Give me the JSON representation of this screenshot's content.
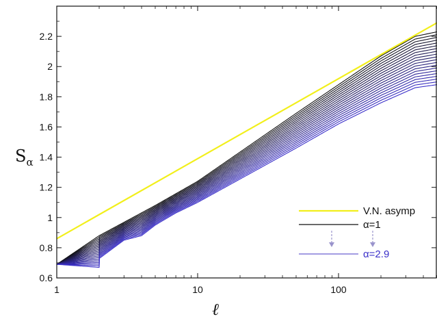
{
  "chart_data": {
    "type": "line",
    "xscale": "log",
    "xlim": [
      1,
      500
    ],
    "ylim": [
      0.6,
      2.4
    ],
    "xlabel": "ℓ",
    "ylabel_main": "S",
    "ylabel_sub": "α",
    "xticks": [
      {
        "value": 1,
        "label": "1"
      },
      {
        "value": 10,
        "label": "10"
      },
      {
        "value": 100,
        "label": "100"
      }
    ],
    "yticks": [
      {
        "value": 0.6,
        "label": "0.6"
      },
      {
        "value": 0.8,
        "label": "0.8"
      },
      {
        "value": 1.0,
        "label": "1"
      },
      {
        "value": 1.2,
        "label": "1.2"
      },
      {
        "value": 1.4,
        "label": "1.4"
      },
      {
        "value": 1.6,
        "label": "1.6"
      },
      {
        "value": 1.8,
        "label": "1.8"
      },
      {
        "value": 2.0,
        "label": "2"
      },
      {
        "value": 2.2,
        "label": "2.2"
      }
    ],
    "asymptote": {
      "name": "V.N. asymp",
      "color": "#f2ef1b",
      "x": [
        1,
        500
      ],
      "y": [
        0.86,
        2.29
      ]
    },
    "alpha_family": {
      "alpha_values": [
        1.0,
        1.1,
        1.2,
        1.3,
        1.4,
        1.5,
        1.6,
        1.7,
        1.8,
        1.9,
        2.0,
        2.1,
        2.2,
        2.3,
        2.4,
        2.5,
        2.6,
        2.7,
        2.8,
        2.9
      ],
      "color_start": "#111111",
      "color_end": "#3a2fc9",
      "first_curve": {
        "x": [
          1,
          2,
          5,
          10,
          50,
          100,
          200,
          350,
          500
        ],
        "y": [
          0.69,
          0.88,
          1.08,
          1.24,
          1.69,
          1.88,
          2.07,
          2.2,
          2.23
        ]
      },
      "last_curve": {
        "x": [
          1,
          2,
          2.01,
          3,
          4,
          5,
          7,
          10,
          50,
          100,
          200,
          350,
          500
        ],
        "y": [
          0.69,
          0.67,
          0.73,
          0.85,
          0.88,
          0.95,
          1.03,
          1.1,
          1.46,
          1.62,
          1.76,
          1.86,
          1.88
        ]
      }
    },
    "legend": {
      "position": "bottom-right",
      "entries": [
        {
          "label": "V.N. asymp",
          "color": "#111111",
          "line_color": "#f2ef1b"
        },
        {
          "label": "α=1",
          "color": "#111111",
          "line_color": "#111111"
        },
        {
          "label": "α=2.9",
          "color": "#3a2fc9",
          "line_color": "#6a5fd0"
        }
      ],
      "arrow_color": "#9a94cc"
    }
  }
}
